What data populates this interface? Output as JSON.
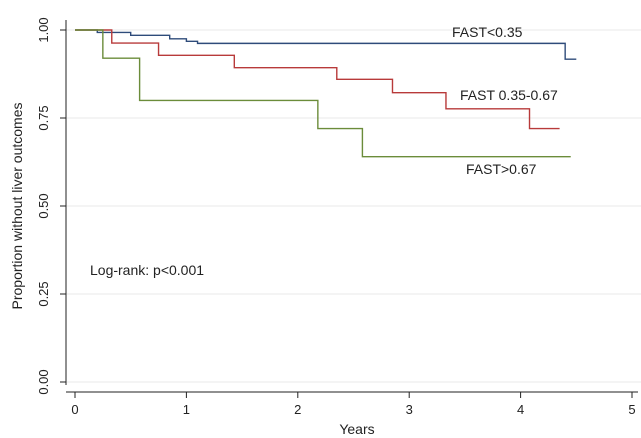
{
  "chart_data": {
    "type": "line",
    "step": true,
    "title": "",
    "xlabel": "Years",
    "ylabel": "Proportion without liver outcomes",
    "xlim": [
      0,
      5
    ],
    "ylim": [
      0,
      1
    ],
    "x_ticks": [
      0,
      1,
      2,
      3,
      4,
      5
    ],
    "x_tick_labels": [
      "0",
      "1",
      "2",
      "3",
      "4",
      "5"
    ],
    "y_ticks": [
      0,
      0.25,
      0.5,
      0.75,
      1
    ],
    "y_tick_labels": [
      "0.00",
      "0.25",
      "0.50",
      "0.75",
      "1.00"
    ],
    "grid": "horizontal",
    "annotation": "Log-rank: p<0.001",
    "series": [
      {
        "name": "FAST<0.35",
        "color": "#2e4b7a",
        "points": [
          [
            0,
            1.0
          ],
          [
            0.2,
            0.993
          ],
          [
            0.5,
            0.985
          ],
          [
            0.85,
            0.975
          ],
          [
            1.0,
            0.968
          ],
          [
            1.1,
            0.962
          ],
          [
            4.35,
            0.962
          ],
          [
            4.4,
            0.917
          ],
          [
            4.5,
            0.917
          ]
        ]
      },
      {
        "name": "FAST 0.35-0.67",
        "color": "#b83a3a",
        "points": [
          [
            0,
            1.0
          ],
          [
            0.33,
            0.963
          ],
          [
            0.75,
            0.928
          ],
          [
            1.43,
            0.893
          ],
          [
            2.35,
            0.86
          ],
          [
            2.85,
            0.822
          ],
          [
            3.33,
            0.776
          ],
          [
            4.08,
            0.72
          ],
          [
            4.35,
            0.72
          ]
        ]
      },
      {
        "name": "FAST>0.67",
        "color": "#6b8c3a",
        "points": [
          [
            0,
            1.0
          ],
          [
            0.25,
            0.92
          ],
          [
            0.58,
            0.8
          ],
          [
            2.18,
            0.72
          ],
          [
            2.58,
            0.64
          ],
          [
            4.45,
            0.64
          ]
        ]
      }
    ]
  }
}
